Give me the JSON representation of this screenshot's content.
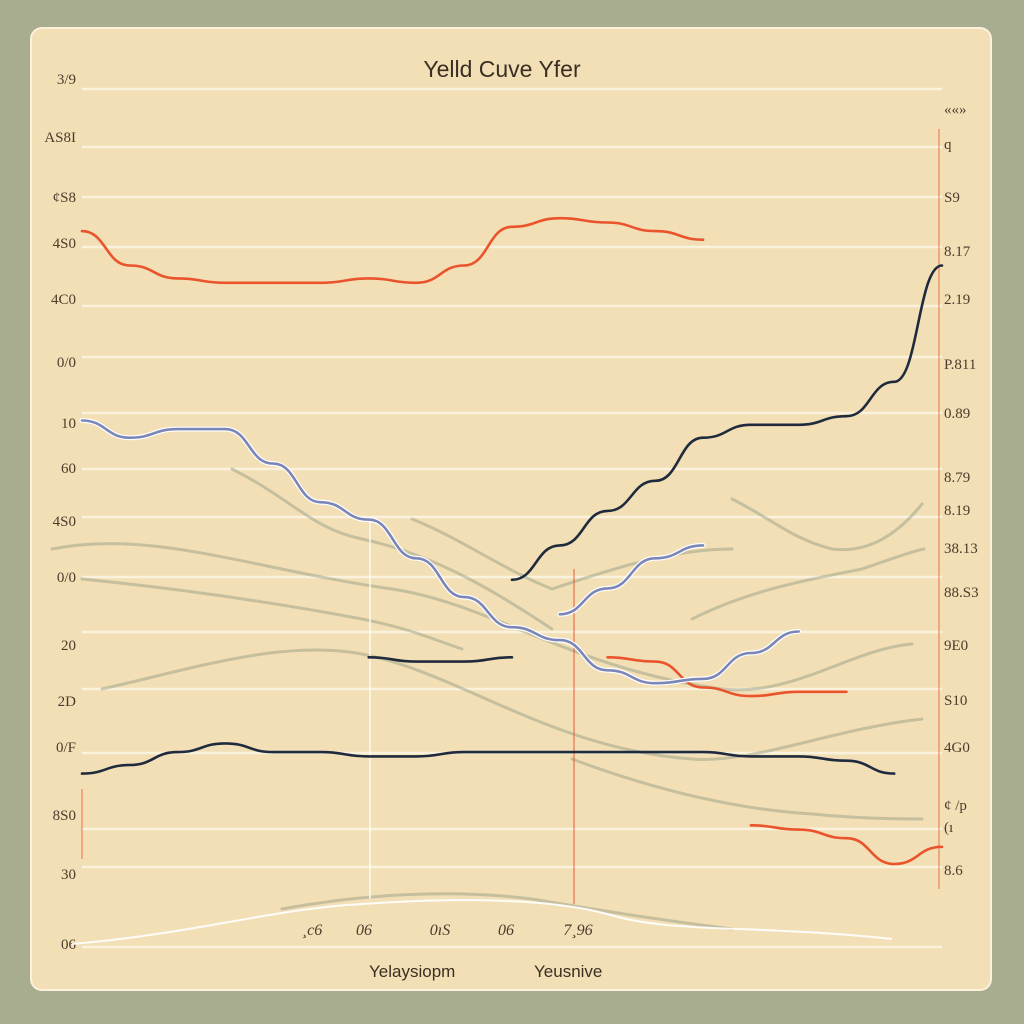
{
  "chart_data": {
    "type": "line",
    "title": "Yelld Cuve Yfer",
    "ylim": [
      0,
      18
    ],
    "y_ticks_left": [
      "3/9",
      "AS8I",
      "¢S8",
      "4S0",
      "4C0",
      "0/0",
      "10",
      "60",
      "4S0",
      "0/0",
      "20",
      "2D",
      "0/F",
      "8S0",
      "30",
      "06"
    ],
    "y_ticks_right": [
      "««»",
      "q",
      "S9",
      "8.17",
      "2.19",
      "P.811",
      "0.89",
      "8.79",
      "8.19",
      "38.13",
      "88.S3",
      "9E0",
      "S10",
      "4G0",
      "¢ /p",
      "(ı",
      "8.6"
    ],
    "x_ticks": [
      "¸c6",
      "06",
      "0ıS",
      "06",
      "7¸96"
    ],
    "legend": [
      "Yelaysiopm",
      "Yeusnive"
    ],
    "grid": true,
    "series": [
      {
        "color": "#e9542c",
        "x": [
          0,
          1,
          2,
          3,
          4,
          5,
          6,
          7,
          8,
          9,
          10,
          11,
          12,
          13,
          14,
          15,
          16,
          17,
          18
        ],
        "values": [
          14.7,
          13.9,
          13.6,
          13.5,
          13.5,
          13.5,
          13.6,
          13.5,
          13.9,
          14.8,
          15.0,
          14.9,
          14.7,
          14.5,
          null,
          null,
          null,
          null,
          null
        ]
      },
      {
        "color": "#e9542c",
        "x": [
          0,
          1,
          2,
          3,
          4,
          5,
          6,
          7,
          8,
          9,
          10,
          11,
          12,
          13,
          14,
          15,
          16,
          17,
          18
        ],
        "values": [
          null,
          null,
          null,
          null,
          null,
          null,
          null,
          null,
          null,
          null,
          null,
          4.8,
          4.7,
          4.1,
          3.9,
          4.0,
          4.0,
          null,
          null
        ]
      },
      {
        "color": "#e9542c",
        "x": [
          0,
          1,
          2,
          3,
          4,
          5,
          6,
          7,
          8,
          9,
          10,
          11,
          12,
          13,
          14,
          15,
          16,
          17,
          18
        ],
        "values": [
          null,
          null,
          null,
          null,
          null,
          null,
          null,
          null,
          null,
          null,
          null,
          null,
          null,
          null,
          0.9,
          0.8,
          0.6,
          0.0,
          0.4
        ]
      },
      {
        "color": "#1f2b3d",
        "x": [
          0,
          1,
          2,
          3,
          4,
          5,
          6,
          7,
          8,
          9,
          10,
          11,
          12,
          13,
          14,
          15,
          16,
          17,
          18
        ],
        "values": [
          null,
          null,
          null,
          null,
          null,
          null,
          null,
          null,
          null,
          6.6,
          7.4,
          8.2,
          8.9,
          9.9,
          10.2,
          10.2,
          10.4,
          11.2,
          13.9
        ]
      },
      {
        "color": "#1f2b3d",
        "x": [
          0,
          1,
          2,
          3,
          4,
          5,
          6,
          7,
          8,
          9,
          10,
          11,
          12,
          13,
          14,
          15,
          16,
          17,
          18
        ],
        "values": [
          null,
          null,
          null,
          null,
          null,
          null,
          4.8,
          4.7,
          4.7,
          4.8,
          null,
          null,
          null,
          null,
          null,
          null,
          null,
          null,
          null
        ]
      },
      {
        "color": "#1f2b3d",
        "x": [
          0,
          1,
          2,
          3,
          4,
          5,
          6,
          7,
          8,
          9,
          10,
          11,
          12,
          13,
          14,
          15,
          16,
          17,
          18
        ],
        "values": [
          2.1,
          2.3,
          2.6,
          2.8,
          2.6,
          2.6,
          2.5,
          2.5,
          2.6,
          2.6,
          2.6,
          2.6,
          2.6,
          2.6,
          2.5,
          2.5,
          2.4,
          2.1,
          null
        ]
      },
      {
        "color": "#7b86b8",
        "x": [
          0,
          1,
          2,
          3,
          4,
          5,
          6,
          7,
          8,
          9,
          10,
          11,
          12,
          13,
          14,
          15,
          16,
          17,
          18
        ],
        "values": [
          10.3,
          9.9,
          10.1,
          10.1,
          9.3,
          8.4,
          8.0,
          7.1,
          6.2,
          5.5,
          5.2,
          4.5,
          4.2,
          4.3,
          4.9,
          5.4,
          null,
          null,
          null
        ]
      },
      {
        "color": "#7b86b8",
        "x": [
          0,
          1,
          2,
          3,
          4,
          5,
          6,
          7,
          8,
          9,
          10,
          11,
          12,
          13,
          14,
          15,
          16,
          17,
          18
        ],
        "values": [
          null,
          null,
          null,
          null,
          null,
          null,
          null,
          null,
          null,
          null,
          5.8,
          6.4,
          7.1,
          7.4,
          null,
          null,
          null,
          null,
          null
        ]
      }
    ]
  }
}
